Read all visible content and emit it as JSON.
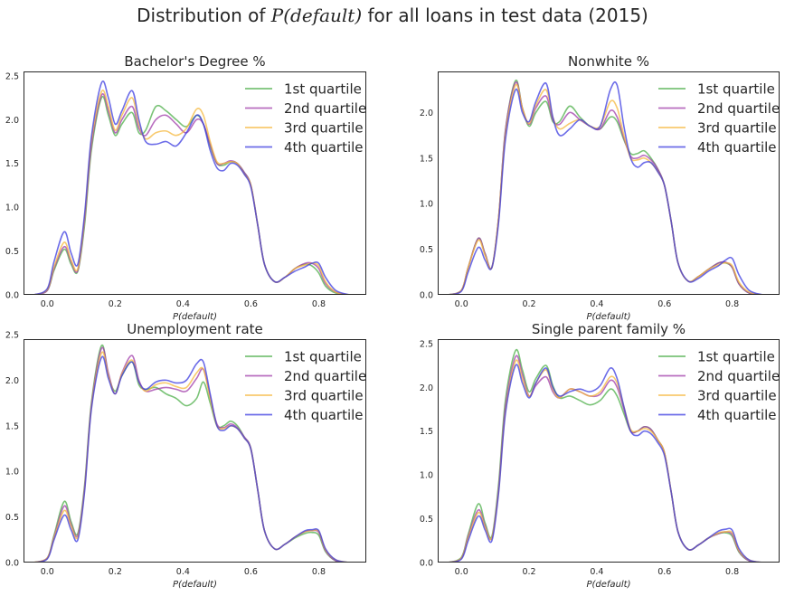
{
  "figure": {
    "title": "Distribution of P(default) for all loans in test data (2015)",
    "title_parts": {
      "before": "Distribution of ",
      "math": "P(default)",
      "after": " for all loans in test data (2015)"
    }
  },
  "legend_labels": [
    "1st quartile",
    "2nd quartile",
    "3rd quartile",
    "4th quartile"
  ],
  "colors": [
    "#4daf4a",
    "#a03caa",
    "#f5b83d",
    "#3b3be0"
  ],
  "chart_data": [
    {
      "type": "line",
      "title": "Bachelor's Degree %",
      "xlabel": "P(default)",
      "xlim": [
        -0.07,
        0.94
      ],
      "ylim": [
        0,
        2.55
      ],
      "xticks": [
        "0.0",
        "0.2",
        "0.4",
        "0.6",
        "0.8"
      ],
      "yticks": [
        "0.0",
        "0.5",
        "1.0",
        "1.5",
        "2.0",
        "2.5"
      ],
      "legend_position": "top-right",
      "x": [
        -0.04,
        0.0,
        0.02,
        0.05,
        0.07,
        0.09,
        0.11,
        0.13,
        0.16,
        0.18,
        0.2,
        0.22,
        0.25,
        0.27,
        0.29,
        0.32,
        0.35,
        0.38,
        0.41,
        0.44,
        0.46,
        0.48,
        0.5,
        0.52,
        0.54,
        0.56,
        0.58,
        0.6,
        0.62,
        0.64,
        0.67,
        0.7,
        0.73,
        0.76,
        0.78,
        0.8,
        0.82,
        0.85,
        0.89
      ],
      "series": [
        {
          "name": "1st quartile",
          "values": [
            0,
            0.05,
            0.28,
            0.52,
            0.35,
            0.27,
            0.8,
            1.65,
            2.25,
            2.05,
            1.82,
            1.95,
            2.08,
            1.85,
            1.88,
            2.15,
            2.1,
            2.0,
            1.92,
            2.05,
            1.95,
            1.7,
            1.5,
            1.48,
            1.52,
            1.5,
            1.4,
            1.25,
            0.8,
            0.35,
            0.15,
            0.2,
            0.3,
            0.35,
            0.33,
            0.25,
            0.1,
            0.02,
            0
          ]
        },
        {
          "name": "2nd quartile",
          "values": [
            0,
            0.05,
            0.3,
            0.55,
            0.38,
            0.28,
            0.85,
            1.7,
            2.28,
            2.1,
            1.85,
            2.0,
            2.15,
            1.9,
            1.82,
            2.0,
            2.05,
            1.95,
            1.85,
            2.0,
            1.95,
            1.72,
            1.5,
            1.5,
            1.53,
            1.5,
            1.4,
            1.25,
            0.8,
            0.35,
            0.15,
            0.2,
            0.3,
            0.36,
            0.36,
            0.3,
            0.13,
            0.03,
            0
          ]
        },
        {
          "name": "3rd quartile",
          "values": [
            0,
            0.06,
            0.32,
            0.6,
            0.4,
            0.3,
            0.88,
            1.75,
            2.32,
            2.15,
            1.88,
            2.05,
            2.25,
            1.95,
            1.78,
            1.85,
            1.87,
            1.82,
            1.9,
            2.12,
            2.05,
            1.75,
            1.52,
            1.5,
            1.52,
            1.5,
            1.38,
            1.25,
            0.8,
            0.35,
            0.15,
            0.2,
            0.3,
            0.34,
            0.36,
            0.33,
            0.15,
            0.03,
            0
          ]
        },
        {
          "name": "4th quartile",
          "values": [
            0,
            0.07,
            0.38,
            0.72,
            0.48,
            0.35,
            0.92,
            1.8,
            2.42,
            2.25,
            1.95,
            2.1,
            2.33,
            2.0,
            1.75,
            1.72,
            1.75,
            1.7,
            1.85,
            2.05,
            1.95,
            1.65,
            1.45,
            1.42,
            1.5,
            1.48,
            1.38,
            1.23,
            0.8,
            0.35,
            0.15,
            0.2,
            0.27,
            0.32,
            0.36,
            0.36,
            0.2,
            0.05,
            0
          ]
        }
      ]
    },
    {
      "type": "line",
      "title": "Nonwhite %",
      "xlabel": "P(default)",
      "xlim": [
        -0.07,
        0.94
      ],
      "ylim": [
        0,
        2.45
      ],
      "xticks": [
        "0.0",
        "0.2",
        "0.4",
        "0.6",
        "0.8"
      ],
      "yticks": [
        "0.0",
        "0.5",
        "1.0",
        "1.5",
        "2.0"
      ],
      "legend_position": "top-right",
      "x": [
        -0.04,
        0.0,
        0.02,
        0.05,
        0.07,
        0.09,
        0.11,
        0.13,
        0.16,
        0.18,
        0.2,
        0.22,
        0.25,
        0.27,
        0.29,
        0.32,
        0.35,
        0.38,
        0.41,
        0.44,
        0.46,
        0.48,
        0.5,
        0.52,
        0.54,
        0.56,
        0.58,
        0.6,
        0.62,
        0.64,
        0.67,
        0.7,
        0.73,
        0.76,
        0.78,
        0.8,
        0.82,
        0.85,
        0.89
      ],
      "series": [
        {
          "name": "1st quartile",
          "values": [
            0,
            0.05,
            0.3,
            0.62,
            0.45,
            0.3,
            0.85,
            1.8,
            2.35,
            2.05,
            1.85,
            2.0,
            2.12,
            1.9,
            1.9,
            2.07,
            1.95,
            1.85,
            1.82,
            1.95,
            1.9,
            1.7,
            1.55,
            1.55,
            1.58,
            1.5,
            1.38,
            1.2,
            0.8,
            0.35,
            0.15,
            0.2,
            0.28,
            0.35,
            0.35,
            0.3,
            0.12,
            0.02,
            0
          ]
        },
        {
          "name": "2nd quartile",
          "values": [
            0,
            0.05,
            0.3,
            0.62,
            0.45,
            0.3,
            0.85,
            1.8,
            2.33,
            2.05,
            1.87,
            2.05,
            2.18,
            1.92,
            1.87,
            2.0,
            1.92,
            1.85,
            1.82,
            2.02,
            1.95,
            1.72,
            1.52,
            1.5,
            1.53,
            1.48,
            1.38,
            1.2,
            0.8,
            0.35,
            0.15,
            0.2,
            0.28,
            0.35,
            0.36,
            0.3,
            0.12,
            0.02,
            0
          ]
        },
        {
          "name": "3rd quartile",
          "values": [
            0,
            0.05,
            0.3,
            0.6,
            0.43,
            0.3,
            0.85,
            1.75,
            2.3,
            2.05,
            1.88,
            2.08,
            2.25,
            1.95,
            1.82,
            1.88,
            1.92,
            1.85,
            1.85,
            2.12,
            2.05,
            1.75,
            1.5,
            1.48,
            1.5,
            1.45,
            1.35,
            1.2,
            0.8,
            0.35,
            0.15,
            0.2,
            0.28,
            0.33,
            0.35,
            0.32,
            0.14,
            0.03,
            0
          ]
        },
        {
          "name": "4th quartile",
          "values": [
            0,
            0.04,
            0.25,
            0.52,
            0.38,
            0.3,
            0.8,
            1.7,
            2.25,
            2.0,
            1.9,
            2.12,
            2.32,
            1.95,
            1.75,
            1.82,
            1.92,
            1.85,
            1.85,
            2.25,
            2.3,
            1.85,
            1.5,
            1.4,
            1.45,
            1.45,
            1.35,
            1.2,
            0.8,
            0.35,
            0.15,
            0.18,
            0.26,
            0.32,
            0.38,
            0.4,
            0.22,
            0.05,
            0
          ]
        }
      ]
    },
    {
      "type": "line",
      "title": "Unemployment rate",
      "xlabel": "P(default)",
      "xlim": [
        -0.07,
        0.94
      ],
      "ylim": [
        0,
        2.45
      ],
      "xticks": [
        "0.0",
        "0.2",
        "0.4",
        "0.6",
        "0.8"
      ],
      "yticks": [
        "0.0",
        "0.5",
        "1.0",
        "1.5",
        "2.0",
        "2.5"
      ],
      "legend_position": "top-right",
      "x": [
        -0.04,
        0.0,
        0.02,
        0.05,
        0.07,
        0.09,
        0.11,
        0.13,
        0.16,
        0.18,
        0.2,
        0.22,
        0.25,
        0.27,
        0.29,
        0.32,
        0.35,
        0.38,
        0.41,
        0.44,
        0.46,
        0.48,
        0.5,
        0.52,
        0.54,
        0.56,
        0.58,
        0.6,
        0.62,
        0.64,
        0.67,
        0.7,
        0.73,
        0.76,
        0.78,
        0.8,
        0.82,
        0.85,
        0.89
      ],
      "series": [
        {
          "name": "1st quartile",
          "values": [
            0,
            0.05,
            0.3,
            0.67,
            0.45,
            0.32,
            0.85,
            1.75,
            2.38,
            2.05,
            1.88,
            2.05,
            2.2,
            1.95,
            1.9,
            1.92,
            1.85,
            1.8,
            1.72,
            1.8,
            1.98,
            1.75,
            1.5,
            1.5,
            1.55,
            1.5,
            1.38,
            1.25,
            0.8,
            0.35,
            0.15,
            0.2,
            0.27,
            0.32,
            0.33,
            0.3,
            0.12,
            0.02,
            0
          ]
        },
        {
          "name": "2nd quartile",
          "values": [
            0,
            0.05,
            0.28,
            0.62,
            0.42,
            0.3,
            0.82,
            1.72,
            2.35,
            2.08,
            1.85,
            2.08,
            2.27,
            2.0,
            1.88,
            1.9,
            1.92,
            1.9,
            1.88,
            2.02,
            2.12,
            1.82,
            1.52,
            1.48,
            1.52,
            1.48,
            1.38,
            1.25,
            0.8,
            0.35,
            0.15,
            0.2,
            0.28,
            0.34,
            0.35,
            0.33,
            0.13,
            0.02,
            0
          ]
        },
        {
          "name": "3rd quartile",
          "values": [
            0,
            0.05,
            0.27,
            0.57,
            0.4,
            0.28,
            0.8,
            1.7,
            2.3,
            2.05,
            1.85,
            2.07,
            2.22,
            1.98,
            1.88,
            1.95,
            1.97,
            1.93,
            1.92,
            2.08,
            2.12,
            1.8,
            1.5,
            1.47,
            1.5,
            1.47,
            1.37,
            1.24,
            0.8,
            0.35,
            0.15,
            0.2,
            0.28,
            0.34,
            0.35,
            0.34,
            0.14,
            0.03,
            0
          ]
        },
        {
          "name": "4th quartile",
          "values": [
            0,
            0.04,
            0.25,
            0.52,
            0.36,
            0.25,
            0.78,
            1.68,
            2.25,
            2.02,
            1.85,
            2.05,
            2.2,
            1.98,
            1.9,
            1.98,
            2.0,
            1.97,
            2.0,
            2.18,
            2.2,
            1.85,
            1.5,
            1.45,
            1.5,
            1.47,
            1.37,
            1.24,
            0.8,
            0.35,
            0.15,
            0.2,
            0.28,
            0.35,
            0.36,
            0.35,
            0.15,
            0.03,
            0
          ]
        }
      ]
    },
    {
      "type": "line",
      "title": "Single parent family %",
      "xlabel": "P(default)",
      "xlim": [
        -0.07,
        0.94
      ],
      "ylim": [
        0,
        2.55
      ],
      "xticks": [
        "0.0",
        "0.2",
        "0.4",
        "0.6",
        "0.8"
      ],
      "yticks": [
        "0.0",
        "0.5",
        "1.0",
        "1.5",
        "2.0",
        "2.5"
      ],
      "legend_position": "top-right",
      "x": [
        -0.04,
        0.0,
        0.02,
        0.05,
        0.07,
        0.09,
        0.11,
        0.13,
        0.16,
        0.18,
        0.2,
        0.22,
        0.25,
        0.27,
        0.29,
        0.32,
        0.35,
        0.38,
        0.41,
        0.44,
        0.46,
        0.48,
        0.5,
        0.52,
        0.54,
        0.56,
        0.58,
        0.6,
        0.62,
        0.64,
        0.67,
        0.7,
        0.73,
        0.76,
        0.78,
        0.8,
        0.82,
        0.85,
        0.89
      ],
      "series": [
        {
          "name": "1st quartile",
          "values": [
            0,
            0.06,
            0.32,
            0.67,
            0.45,
            0.3,
            0.9,
            1.85,
            2.42,
            2.2,
            1.95,
            2.1,
            2.25,
            2.02,
            1.88,
            1.9,
            1.85,
            1.8,
            1.85,
            1.98,
            1.9,
            1.7,
            1.5,
            1.5,
            1.55,
            1.52,
            1.4,
            1.25,
            0.8,
            0.35,
            0.15,
            0.2,
            0.28,
            0.33,
            0.34,
            0.3,
            0.12,
            0.02,
            0
          ]
        },
        {
          "name": "2nd quartile",
          "values": [
            0,
            0.05,
            0.3,
            0.6,
            0.42,
            0.28,
            0.85,
            1.78,
            2.35,
            2.15,
            1.9,
            2.02,
            2.12,
            1.95,
            1.88,
            1.98,
            1.95,
            1.9,
            1.92,
            2.08,
            2.0,
            1.75,
            1.5,
            1.5,
            1.55,
            1.52,
            1.4,
            1.25,
            0.8,
            0.35,
            0.15,
            0.2,
            0.28,
            0.33,
            0.35,
            0.32,
            0.13,
            0.02,
            0
          ]
        },
        {
          "name": "3rd quartile",
          "values": [
            0,
            0.05,
            0.28,
            0.57,
            0.4,
            0.28,
            0.82,
            1.72,
            2.3,
            2.1,
            1.9,
            2.05,
            2.2,
            1.98,
            1.88,
            1.98,
            1.95,
            1.9,
            1.95,
            2.12,
            2.05,
            1.78,
            1.52,
            1.5,
            1.53,
            1.5,
            1.4,
            1.25,
            0.8,
            0.35,
            0.15,
            0.2,
            0.28,
            0.34,
            0.35,
            0.34,
            0.14,
            0.03,
            0
          ]
        },
        {
          "name": "4th quartile",
          "values": [
            0,
            0.04,
            0.25,
            0.53,
            0.37,
            0.25,
            0.8,
            1.7,
            2.25,
            2.05,
            1.88,
            2.05,
            2.22,
            2.0,
            1.9,
            1.95,
            1.98,
            1.95,
            2.02,
            2.22,
            2.1,
            1.78,
            1.5,
            1.45,
            1.5,
            1.47,
            1.37,
            1.22,
            0.8,
            0.35,
            0.15,
            0.2,
            0.28,
            0.36,
            0.38,
            0.37,
            0.16,
            0.03,
            0
          ]
        }
      ]
    }
  ]
}
